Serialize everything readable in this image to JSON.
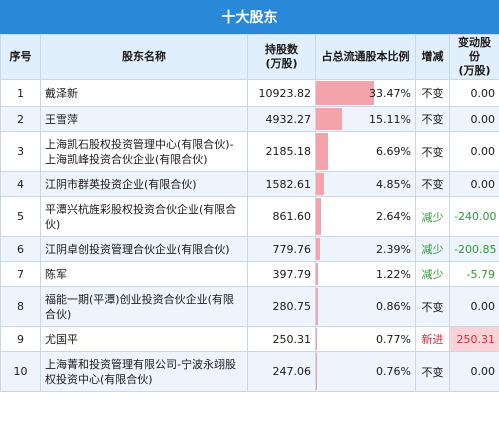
{
  "title": "十大股东",
  "headers": {
    "idx": "序号",
    "name": "股东名称",
    "shares": "持股数\n(万股)",
    "ratio": "占总流通股本比例",
    "change": "增减",
    "delta": "变动股份\n(万股)"
  },
  "colors": {
    "title_bg": "#2a88d8",
    "bar": "#f4a3ab",
    "decrease": "#2e9a3a",
    "new": "#e0293a"
  },
  "rows": [
    {
      "idx": "1",
      "name": "戴泽新",
      "shares": "10923.82",
      "ratio": "33.47%",
      "ratio_value": 33.47,
      "change": "不变",
      "change_type": "same",
      "delta": "0.00"
    },
    {
      "idx": "2",
      "name": "王雪萍",
      "shares": "4932.27",
      "ratio": "15.11%",
      "ratio_value": 15.11,
      "change": "不变",
      "change_type": "same",
      "delta": "0.00"
    },
    {
      "idx": "3",
      "name": "上海凯石股权投资管理中心(有限合伙)-上海凯峰投资合伙企业(有限合伙)",
      "shares": "2185.18",
      "ratio": "6.69%",
      "ratio_value": 6.69,
      "change": "不变",
      "change_type": "same",
      "delta": "0.00"
    },
    {
      "idx": "4",
      "name": "江阴市群英投资企业(有限合伙)",
      "shares": "1582.61",
      "ratio": "4.85%",
      "ratio_value": 4.85,
      "change": "不变",
      "change_type": "same",
      "delta": "0.00"
    },
    {
      "idx": "5",
      "name": "平潭兴杭旌彩股权投资合伙企业(有限合伙)",
      "shares": "861.60",
      "ratio": "2.64%",
      "ratio_value": 2.64,
      "change": "减少",
      "change_type": "down",
      "delta": "-240.00"
    },
    {
      "idx": "6",
      "name": "江阴卓创投资管理合伙企业(有限合伙)",
      "shares": "779.76",
      "ratio": "2.39%",
      "ratio_value": 2.39,
      "change": "减少",
      "change_type": "down",
      "delta": "-200.85"
    },
    {
      "idx": "7",
      "name": "陈军",
      "shares": "397.79",
      "ratio": "1.22%",
      "ratio_value": 1.22,
      "change": "减少",
      "change_type": "down",
      "delta": "-5.79"
    },
    {
      "idx": "8",
      "name": "福能一期(平潭)创业投资合伙企业(有限合伙)",
      "shares": "280.75",
      "ratio": "0.86%",
      "ratio_value": 0.86,
      "change": "不变",
      "change_type": "same",
      "delta": "0.00"
    },
    {
      "idx": "9",
      "name": "尤国平",
      "shares": "250.31",
      "ratio": "0.77%",
      "ratio_value": 0.77,
      "change": "新进",
      "change_type": "new",
      "delta": "250.31"
    },
    {
      "idx": "10",
      "name": "上海菁和投资管理有限公司-宁波永翊股权投资中心(有限合伙)",
      "shares": "247.06",
      "ratio": "0.76%",
      "ratio_value": 0.76,
      "change": "不变",
      "change_type": "same",
      "delta": "0.00"
    }
  ]
}
